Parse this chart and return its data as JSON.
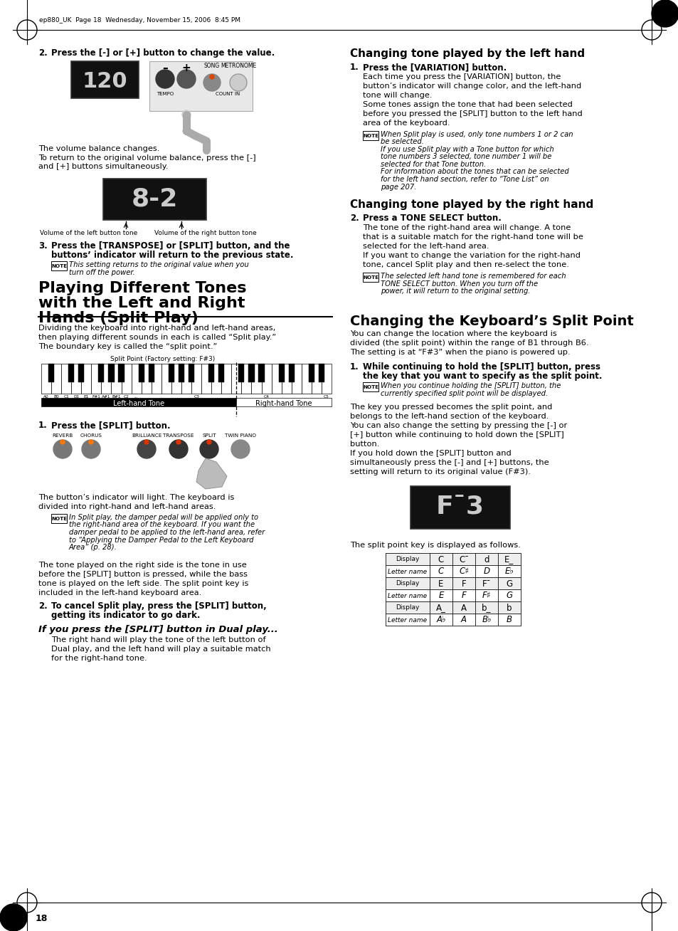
{
  "page_number": "18",
  "header_text": "ep880_UK  Page 18  Wednesday, November 15, 2006  8:45 PM",
  "background_color": "#ffffff",
  "text_color": "#000000",
  "table_rows": [
    [
      "Display",
      "C",
      "C¯",
      "d",
      "E_"
    ],
    [
      "Letter name",
      "C",
      "C♯",
      "D",
      "E♭"
    ],
    [
      "Display",
      "E",
      "F",
      "F¯",
      "G"
    ],
    [
      "Letter name",
      "E",
      "F",
      "F♯",
      "G"
    ],
    [
      "Display",
      "A_",
      "A",
      "b_",
      "b"
    ],
    [
      "Letter name",
      "A♭",
      "A",
      "B♭",
      "B"
    ]
  ]
}
